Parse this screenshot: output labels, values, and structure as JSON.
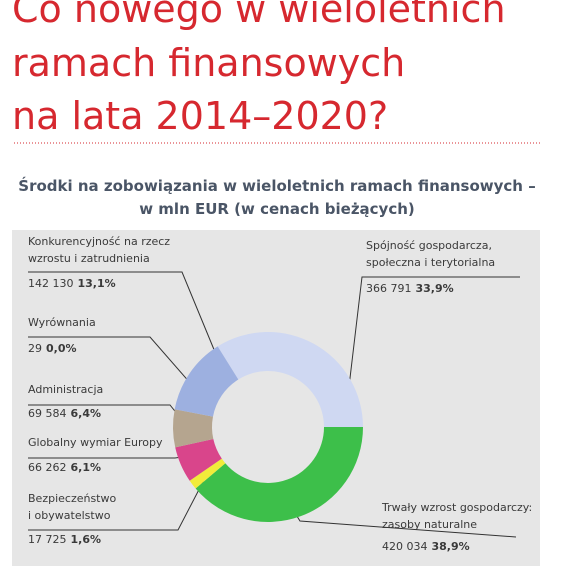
{
  "heading": {
    "lines": [
      "Co nowego w wieloletnich",
      "ramach finansowych",
      "na lata 2014–2020?"
    ]
  },
  "chart_data": {
    "type": "donut",
    "title": [
      "Środki na zobowiązania w wieloletnich ramach finansowych –",
      "w mln EUR (w cenach bieżących)"
    ],
    "categories": [
      [
        "Spójność gospodarcza,",
        "społeczna i terytorialna"
      ],
      [
        "Trwały wzrost gospodarczy:",
        "zasoby naturalne"
      ],
      [
        "Bezpieczeństwo",
        "i obywatelstwo"
      ],
      [
        "Globalny wymiar Europy"
      ],
      [
        "Administracja"
      ],
      [
        "Wyrównania"
      ],
      [
        "Konkurencyjność na rzecz",
        "wzrostu i zatrudnienia"
      ]
    ],
    "values": [
      366791,
      420034,
      17725,
      66262,
      69584,
      29,
      142130
    ],
    "value_labels": [
      "366 791",
      "420 034",
      "17 725",
      "66 262",
      "69 584",
      "29",
      "142 130"
    ],
    "shares": [
      33.9,
      38.9,
      1.6,
      6.1,
      6.4,
      0.0,
      13.1
    ],
    "share_labels": [
      "33,9%",
      "38,9%",
      "1,6%",
      "6,1%",
      "6,4%",
      "0,0%",
      "13,1%"
    ],
    "colors": [
      "#cfd8f2",
      "#3dbf4a",
      "#f1ec3a",
      "#d9458b",
      "#b5a58f",
      "#7f7f7f",
      "#9db0e0"
    ]
  }
}
